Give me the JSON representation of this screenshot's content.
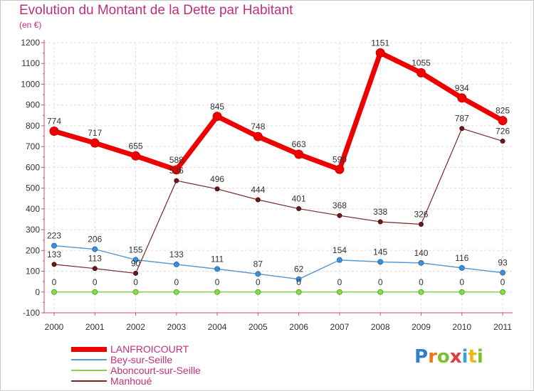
{
  "header": {
    "title": "Evolution du Montant de la Dette par Habitant",
    "unit": "(en €)"
  },
  "brand": {
    "letters": [
      "P",
      "r",
      "o",
      "x",
      "i",
      "t",
      "i"
    ],
    "colors": [
      "#2f7fd0",
      "#e87a1e",
      "#7dbf2e",
      "#e23b3b",
      "#3aa0d8",
      "#e8b81e",
      "#7dbf2e"
    ]
  },
  "chart_data": {
    "type": "line",
    "title": "Evolution du Montant de la Dette par Habitant",
    "ylabel": "(en €)",
    "x": [
      "2000",
      "2001",
      "2002",
      "2003",
      "2004",
      "2005",
      "2006",
      "2007",
      "2008",
      "2009",
      "2010",
      "2011"
    ],
    "ylim": [
      -100,
      1200
    ],
    "yticks": [
      -100,
      0,
      100,
      200,
      300,
      400,
      500,
      600,
      700,
      800,
      900,
      1000,
      1100,
      1200
    ],
    "grid": true,
    "legend": "bottom-left",
    "series": [
      {
        "name": "LANFROICOURT",
        "color": "#ee0000",
        "values": [
          774,
          717,
          655,
          588,
          845,
          748,
          663,
          590,
          1151,
          1055,
          934,
          825
        ]
      },
      {
        "name": "Bey-sur-Seille",
        "color": "#5b9bd5",
        "values": [
          223,
          206,
          155,
          133,
          111,
          87,
          62,
          154,
          145,
          140,
          116,
          93
        ]
      },
      {
        "name": "Aboncourt-sur-Seille",
        "color": "#88cc55",
        "values": [
          0,
          0,
          0,
          0,
          0,
          0,
          0,
          0,
          0,
          0,
          0,
          0
        ]
      },
      {
        "name": "Manhoué",
        "color": "#7a2828",
        "values": [
          133,
          113,
          90,
          536,
          496,
          444,
          401,
          368,
          338,
          326,
          787,
          726
        ]
      }
    ]
  }
}
